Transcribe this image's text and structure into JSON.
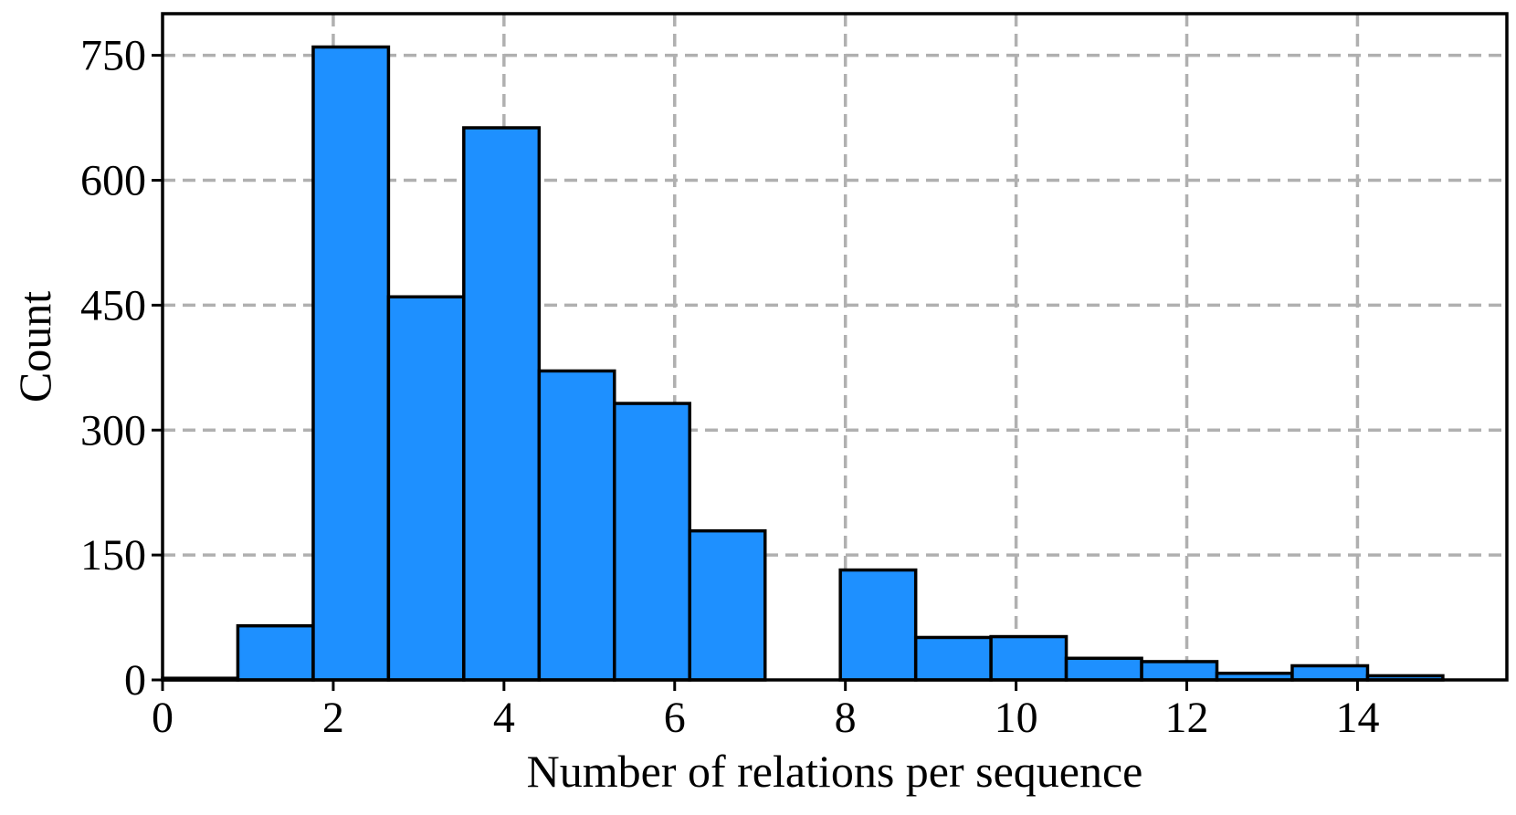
{
  "chart_data": {
    "type": "bar",
    "title": "",
    "xlabel": "Number of relations per sequence",
    "ylabel": "Count",
    "xlim": [
      0,
      15.75
    ],
    "ylim": [
      0,
      800
    ],
    "bins": [
      {
        "x0": 0.0,
        "x1": 0.882,
        "value": 2
      },
      {
        "x0": 0.882,
        "x1": 1.765,
        "value": 65
      },
      {
        "x0": 1.765,
        "x1": 2.647,
        "value": 760
      },
      {
        "x0": 2.647,
        "x1": 3.529,
        "value": 460
      },
      {
        "x0": 3.529,
        "x1": 4.412,
        "value": 663
      },
      {
        "x0": 4.412,
        "x1": 5.294,
        "value": 371
      },
      {
        "x0": 5.294,
        "x1": 6.176,
        "value": 332
      },
      {
        "x0": 6.176,
        "x1": 7.059,
        "value": 179
      },
      {
        "x0": 7.059,
        "x1": 7.941,
        "value": 0
      },
      {
        "x0": 7.941,
        "x1": 8.824,
        "value": 132
      },
      {
        "x0": 8.824,
        "x1": 9.706,
        "value": 51
      },
      {
        "x0": 9.706,
        "x1": 10.588,
        "value": 52
      },
      {
        "x0": 10.588,
        "x1": 11.471,
        "value": 26
      },
      {
        "x0": 11.471,
        "x1": 12.353,
        "value": 22
      },
      {
        "x0": 12.353,
        "x1": 13.235,
        "value": 8
      },
      {
        "x0": 13.235,
        "x1": 14.118,
        "value": 17
      },
      {
        "x0": 14.118,
        "x1": 15.0,
        "value": 5
      }
    ],
    "xticks": [
      0,
      2,
      4,
      6,
      8,
      10,
      12,
      14
    ],
    "xtick_labels": [
      "0",
      "2",
      "4",
      "6",
      "8",
      "10",
      "12",
      "14"
    ],
    "yticks": [
      0,
      150,
      300,
      450,
      600,
      750
    ],
    "ytick_labels": [
      "0",
      "150",
      "300",
      "450",
      "600",
      "750"
    ],
    "grid": true,
    "grid_style": "dashed",
    "colors": {
      "bar_fill": "#1e90ff",
      "bar_edge": "#000000",
      "grid": "#b0b0b0",
      "frame": "#000000"
    }
  }
}
